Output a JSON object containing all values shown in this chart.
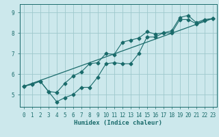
{
  "xlabel": "Humidex (Indice chaleur)",
  "bg_color": "#cce8ec",
  "grid_color": "#9ec8cc",
  "line_color": "#1a6b6b",
  "xlim": [
    -0.5,
    23.5
  ],
  "ylim": [
    4.4,
    9.4
  ],
  "xticks": [
    0,
    1,
    2,
    3,
    4,
    5,
    6,
    7,
    8,
    9,
    10,
    11,
    12,
    13,
    14,
    15,
    16,
    17,
    18,
    19,
    20,
    21,
    22,
    23
  ],
  "yticks": [
    5,
    6,
    7,
    8,
    9
  ],
  "series_upper_x": [
    0,
    1,
    2,
    3,
    4,
    5,
    6,
    7,
    8,
    9,
    10,
    11,
    12,
    13,
    14,
    15,
    16,
    17,
    18,
    19,
    20,
    21,
    22,
    23
  ],
  "series_upper_y": [
    5.4,
    5.5,
    5.65,
    5.15,
    5.1,
    5.55,
    5.9,
    6.1,
    6.5,
    6.55,
    7.0,
    6.95,
    7.55,
    7.65,
    7.75,
    8.05,
    7.95,
    8.0,
    8.1,
    8.75,
    8.85,
    8.5,
    8.65,
    8.7
  ],
  "series_lower_x": [
    0,
    1,
    2,
    3,
    4,
    5,
    6,
    7,
    8,
    9,
    10,
    11,
    12,
    13,
    14,
    15,
    16,
    17,
    18,
    19,
    20,
    21,
    22,
    23
  ],
  "series_lower_y": [
    5.4,
    5.5,
    5.65,
    5.15,
    4.65,
    4.85,
    5.0,
    5.35,
    5.35,
    5.85,
    6.5,
    6.55,
    6.5,
    6.5,
    7.0,
    7.8,
    7.8,
    8.0,
    8.0,
    8.65,
    8.65,
    8.45,
    8.6,
    8.7
  ],
  "series_line_x": [
    0,
    23
  ],
  "series_line_y": [
    5.4,
    8.7
  ]
}
